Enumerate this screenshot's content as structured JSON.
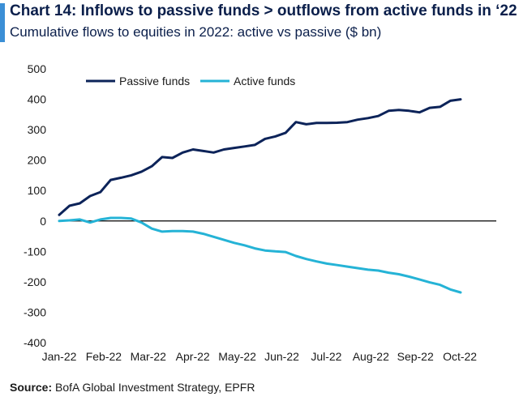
{
  "header": {
    "title": "Chart 14: Inflows to passive funds > outflows from active funds in ‘22",
    "subtitle": "Cumulative flows to equities in 2022: active vs passive ($ bn)"
  },
  "footer": {
    "source_label": "Source:",
    "source_text": "BofA Global Investment Strategy, EPFR"
  },
  "colors": {
    "passive": "#0c2359",
    "active": "#25b3d6",
    "zero_line": "#000000",
    "accent": "#3b8fd6"
  },
  "chart_data": {
    "type": "line",
    "title": "Chart 14: Inflows to passive funds > outflows from active funds in ‘22",
    "subtitle": "Cumulative flows to equities in 2022: active vs passive ($ bn)",
    "xlabel": "",
    "ylabel": "",
    "ylim": [
      -400,
      500
    ],
    "yticks": [
      500,
      400,
      300,
      200,
      100,
      0,
      -100,
      -200,
      -300,
      -400
    ],
    "xticks": [
      "Jan-22",
      "Feb-22",
      "Mar-22",
      "Apr-22",
      "May-22",
      "Jun-22",
      "Jul-22",
      "Aug-22",
      "Sep-22",
      "Oct-22"
    ],
    "grid": false,
    "legend": "top-left",
    "x_unit": "weeks",
    "series": [
      {
        "name": "Passive funds",
        "color": "#0c2359",
        "values": [
          20,
          50,
          58,
          82,
          95,
          135,
          142,
          150,
          162,
          180,
          210,
          207,
          225,
          235,
          230,
          225,
          235,
          240,
          245,
          250,
          270,
          278,
          290,
          325,
          318,
          322,
          322,
          323,
          325,
          333,
          338,
          345,
          362,
          365,
          362,
          357,
          372,
          375,
          395,
          400
        ]
      },
      {
        "name": "Active funds",
        "color": "#25b3d6",
        "values": [
          0,
          2,
          5,
          -5,
          5,
          10,
          10,
          8,
          -5,
          -25,
          -35,
          -33,
          -33,
          -35,
          -42,
          -52,
          -62,
          -72,
          -80,
          -90,
          -97,
          -100,
          -102,
          -115,
          -125,
          -133,
          -140,
          -145,
          -150,
          -155,
          -160,
          -163,
          -170,
          -175,
          -183,
          -192,
          -202,
          -210,
          -225,
          -235
        ]
      }
    ]
  }
}
